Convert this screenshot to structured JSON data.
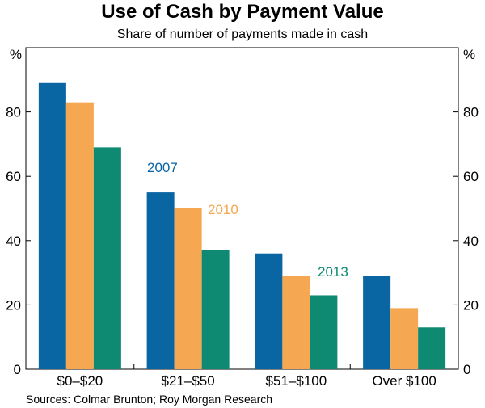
{
  "chart_data": {
    "type": "bar",
    "title": "Use of Cash by Payment Value",
    "subtitle": "Share of number of payments made in cash",
    "ylabel_left": "%",
    "ylabel_right": "%",
    "ylim": [
      0,
      100
    ],
    "yticks": [
      0,
      20,
      40,
      60,
      80
    ],
    "categories": [
      "$0–$20",
      "$21–$50",
      "$51–$100",
      "Over $100"
    ],
    "series": [
      {
        "name": "2007",
        "color": "#0a66a3",
        "values": [
          89,
          55,
          36,
          29
        ]
      },
      {
        "name": "2010",
        "color": "#f5a851",
        "values": [
          83,
          50,
          29,
          19
        ]
      },
      {
        "name": "2013",
        "color": "#0f8a72",
        "values": [
          69,
          37,
          23,
          13
        ]
      }
    ],
    "source": "Sources: Colmar Brunton; Roy Morgan Research"
  }
}
